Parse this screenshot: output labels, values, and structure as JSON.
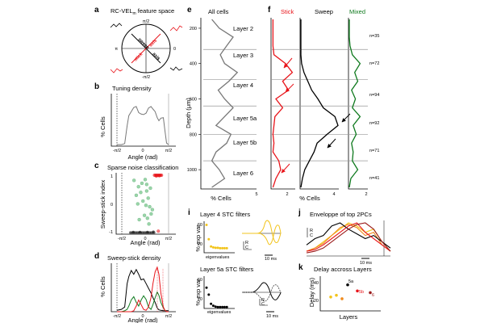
{
  "figure": {
    "panel_letters": {
      "a": "a",
      "b": "b",
      "c": "c",
      "d": "d",
      "e": "e",
      "f": "f",
      "i": "i",
      "j": "j",
      "k": "k"
    },
    "colors": {
      "stick": "#e8141a",
      "sweep": "#000000",
      "mixed": "#0f7a1e",
      "curve_gray": "#777777",
      "dot_green": "#8fd0a0",
      "yellow": "#f2c41c",
      "orange": "#f08a1c",
      "darkred": "#9b1c1c"
    },
    "a": {
      "title": "RC-VEL",
      "title_sub": "m",
      "title_rest": " feature space",
      "sweep_label": "sweep",
      "stick_label": "stick",
      "axis_label": "axis",
      "angle_top": "π/2",
      "angle_bottom": "-π/2",
      "angle_left": "π",
      "angle_right": "0"
    },
    "b": {
      "title": "Tuning density",
      "ylabel": "% Cells",
      "xlabel": "Angle (rad)",
      "xticks": [
        "-π/2",
        "0",
        "π/2"
      ]
    },
    "c": {
      "title": "Sparse noise classification",
      "ylabel": "Sweep-stick index",
      "xlabel": "Angle (rad)",
      "yticks": [
        "1",
        "0",
        "-1"
      ],
      "xticks": [
        "-π/2",
        "0",
        "π/2"
      ]
    },
    "d": {
      "title": "Sweep-stick density",
      "ylabel": "% Cells",
      "xlabel": "Angle (rad)",
      "xticks": [
        "-π/2",
        "0",
        "π/2"
      ]
    },
    "e": {
      "title": "All cells",
      "ylabel": "Depth (μm)",
      "xlabel": "% Cells",
      "xtick_max": "5",
      "depth_ticks": [
        "200",
        "400",
        "600",
        "800",
        "1000"
      ],
      "layers": [
        "Layer 2",
        "Layer 3",
        "Layer 4",
        "Layer 5a",
        "Layer 5b",
        "Layer 6"
      ]
    },
    "f": {
      "stick_title": "Stick",
      "sweep_title": "Sweep",
      "mixed_title": "Mixed",
      "stick_xtick": "2",
      "sweep_xlabel": "% Cells",
      "sweep_xtick": "4",
      "mixed_xtick": "2",
      "counts": [
        "n=35",
        "n=72",
        "n=94",
        "n=92",
        "n=71",
        "n=41"
      ]
    },
    "i": {
      "title_top": "Layer 4 STC filters",
      "title_bottom": "Layer 5a STC filters",
      "ylabel": "% exp var",
      "ytick_top_60": "60",
      "ytick_top_20": "20",
      "ytick_bot_60": "60",
      "ytick_bot_20": "20",
      "xlabel": "eigenvalues",
      "scale_ms": "10 ms",
      "scale_r": "R",
      "scale_c": "C"
    },
    "j": {
      "title": "Enveloppe of top 2PCs",
      "scale_ms": "10 ms",
      "scale_r": "R",
      "scale_c": "C"
    },
    "k": {
      "title": "Delay accross Layers",
      "ylabel": "Delay (ms)",
      "xlabel": "Layers",
      "yticks": [
        "40",
        "20"
      ],
      "layer_labels": [
        "5a",
        "5b",
        "6"
      ]
    }
  },
  "chart_data": [
    {
      "panel": "b",
      "type": "line",
      "title": "Tuning density",
      "xlabel": "Angle (rad)",
      "ylabel": "% Cells",
      "xlim": [
        -1.5708,
        1.5708
      ],
      "ylim": [
        0,
        10
      ],
      "x": [
        -1.5708,
        -1.3,
        -1.1,
        -0.95,
        -0.85,
        -0.7,
        -0.55,
        -0.4,
        -0.25,
        -0.1,
        0.05,
        0.2,
        0.35,
        0.5,
        0.62,
        0.75,
        0.88,
        0.98,
        1.1,
        1.25,
        1.35,
        1.45,
        1.5708
      ],
      "series": [
        {
          "name": "all cells",
          "values": [
            0.3,
            0.3,
            0.5,
            4.0,
            6.0,
            6.8,
            7.6,
            7.8,
            6.6,
            6.3,
            6.2,
            6.5,
            7.5,
            7.8,
            7.3,
            6.8,
            5.6,
            5.0,
            5.5,
            5.6,
            3.0,
            0.6,
            0.3
          ]
        }
      ]
    },
    {
      "panel": "c",
      "type": "scatter",
      "title": "Sparse noise classification",
      "xlabel": "Angle (rad)",
      "ylabel": "Sweep-stick index",
      "xlim": [
        -1.5708,
        1.5708
      ],
      "ylim": [
        -1,
        1
      ],
      "series": [
        {
          "name": "sweep",
          "points": [
            [
              -1.0,
              -1.0
            ],
            [
              -0.9,
              -1.0
            ],
            [
              -0.8,
              -1.0
            ],
            [
              -0.7,
              -1.0
            ],
            [
              -0.6,
              -1.0
            ],
            [
              -0.5,
              -1.0
            ],
            [
              -0.4,
              -1.0
            ],
            [
              -0.3,
              -1.0
            ],
            [
              -0.2,
              -1.0
            ],
            [
              -0.1,
              -1.0
            ],
            [
              0.0,
              -1.0
            ],
            [
              0.1,
              -1.0
            ],
            [
              0.2,
              -1.0
            ],
            [
              0.3,
              -1.0
            ],
            [
              0.4,
              -1.0
            ],
            [
              0.5,
              -1.0
            ],
            [
              0.6,
              -1.0
            ],
            [
              -0.8,
              -0.98
            ],
            [
              -0.35,
              -0.98
            ],
            [
              0.15,
              -0.98
            ],
            [
              0.55,
              -0.97
            ]
          ]
        },
        {
          "name": "stick",
          "points": [
            [
              0.62,
              1.0
            ],
            [
              0.68,
              1.0
            ],
            [
              0.74,
              1.0
            ],
            [
              0.8,
              1.0
            ],
            [
              0.86,
              1.0
            ],
            [
              0.92,
              1.0
            ],
            [
              0.98,
              1.0
            ],
            [
              1.04,
              1.0
            ],
            [
              1.1,
              1.0
            ],
            [
              0.75,
              0.97
            ],
            [
              0.95,
              0.98
            ],
            [
              0.88,
              -0.95
            ]
          ]
        },
        {
          "name": "mixed",
          "points": [
            [
              -0.75,
              0.82
            ],
            [
              -0.45,
              0.6
            ],
            [
              -0.22,
              0.72
            ],
            [
              0.1,
              0.68
            ],
            [
              -0.6,
              0.3
            ],
            [
              -0.3,
              0.4
            ],
            [
              0.2,
              0.2
            ],
            [
              -0.15,
              0.1
            ],
            [
              0.05,
              -0.05
            ],
            [
              -0.5,
              0.0
            ],
            [
              0.3,
              -0.1
            ],
            [
              -0.05,
              -0.4
            ],
            [
              0.15,
              -0.5
            ],
            [
              0.4,
              -0.35
            ],
            [
              -0.4,
              -0.55
            ],
            [
              0.25,
              -0.7
            ],
            [
              0.48,
              -0.2
            ],
            [
              0.1,
              0.45
            ],
            [
              0.35,
              0.55
            ],
            [
              0.0,
              0.85
            ]
          ]
        }
      ]
    },
    {
      "panel": "d",
      "type": "line",
      "title": "Sweep-stick density",
      "xlabel": "Angle (rad)",
      "ylabel": "% Cells",
      "xlim": [
        -1.5708,
        1.5708
      ],
      "ylim": [
        0,
        10
      ],
      "x": [
        -1.5708,
        -1.3,
        -1.1,
        -0.95,
        -0.85,
        -0.7,
        -0.55,
        -0.4,
        -0.25,
        -0.1,
        0.05,
        0.2,
        0.35,
        0.5,
        0.62,
        0.75,
        0.88,
        0.98,
        1.1,
        1.25,
        1.35,
        1.45,
        1.5708
      ],
      "series": [
        {
          "name": "Sweep",
          "color": "#000000",
          "values": [
            0.3,
            0.5,
            1.0,
            6.0,
            7.5,
            8.8,
            8.0,
            9.0,
            8.0,
            6.8,
            7.0,
            6.0,
            5.0,
            4.0,
            3.0,
            2.0,
            0.8,
            0.4,
            0.3,
            0.2,
            0.2,
            0.2,
            0.2
          ]
        },
        {
          "name": "Mixed",
          "color": "#0f7a1e",
          "values": [
            0,
            0,
            0.2,
            0.5,
            1.2,
            2.5,
            3.2,
            2.0,
            1.2,
            2.5,
            3.4,
            2.6,
            1.0,
            0.5,
            1.5,
            3.0,
            4.2,
            3.5,
            2.0,
            0.8,
            0.3,
            0,
            0
          ]
        },
        {
          "name": "Stick",
          "color": "#e8141a",
          "values": [
            0,
            0,
            0,
            0,
            0,
            0,
            0.2,
            1.2,
            2.5,
            1.5,
            0.5,
            0.3,
            1.0,
            3.0,
            6.0,
            8.5,
            9.5,
            8.0,
            4.0,
            1.0,
            0.3,
            0,
            0
          ]
        }
      ]
    },
    {
      "panel": "e",
      "type": "line",
      "title": "All cells",
      "xlabel": "% Cells",
      "ylabel": "Depth (μm)",
      "xlim": [
        0,
        5
      ],
      "ylim": [
        1100,
        150
      ],
      "depth": [
        150,
        200,
        250,
        300,
        350,
        400,
        450,
        500,
        550,
        600,
        650,
        700,
        750,
        800,
        850,
        900,
        950,
        1000,
        1050,
        1100
      ],
      "series": [
        {
          "name": "all cells",
          "values": [
            0.8,
            1.5,
            2.8,
            2.2,
            1.6,
            2.0,
            3.2,
            2.4,
            1.4,
            2.0,
            2.8,
            2.0,
            1.2,
            2.6,
            2.2,
            1.2,
            0.8,
            1.5,
            2.0,
            0.8
          ]
        }
      ]
    },
    {
      "panel": "f",
      "type": "line",
      "title": "Stick / Sweep / Mixed depth profiles",
      "xlabel": "% Cells",
      "ylabel": "Depth (μm)",
      "ylim": [
        1100,
        150
      ],
      "depth": [
        150,
        200,
        250,
        300,
        350,
        400,
        450,
        500,
        550,
        600,
        650,
        700,
        750,
        800,
        850,
        900,
        950,
        1000,
        1050,
        1100
      ],
      "series": [
        {
          "name": "Stick",
          "color": "#e8141a",
          "xlim": [
            0,
            2.5
          ],
          "values": [
            0.2,
            0.2,
            0.2,
            0.2,
            0.3,
            1.5,
            2.2,
            1.2,
            1.8,
            0.5,
            1.2,
            0.4,
            0.3,
            0.2,
            0.3,
            0.2,
            0.8,
            1.0,
            0.5,
            0.2
          ]
        },
        {
          "name": "Sweep",
          "color": "#000000",
          "xlim": [
            0,
            5
          ],
          "values": [
            0.1,
            0.1,
            0.1,
            0.1,
            0.1,
            0.2,
            0.5,
            1.0,
            1.5,
            2.3,
            3.0,
            4.5,
            4.9,
            3.5,
            2.2,
            1.8,
            1.2,
            0.6,
            0.3,
            0.1
          ]
        },
        {
          "name": "Mixed",
          "color": "#0f7a1e",
          "xlim": [
            0,
            2.5
          ],
          "values": [
            0.1,
            0.1,
            0.1,
            0.2,
            0.5,
            1.5,
            0.8,
            1.2,
            0.4,
            0.9,
            0.5,
            1.5,
            0.6,
            1.0,
            0.4,
            0.6,
            0.5,
            1.2,
            0.3,
            0.1
          ]
        }
      ],
      "counts": [
        "n=35",
        "n=72",
        "n=94",
        "n=92",
        "n=71",
        "n=41"
      ],
      "layer_boundaries_um": [
        320,
        490,
        640,
        800,
        950
      ]
    },
    {
      "panel": "i",
      "type": "scatter",
      "title": "Layer 4 STC filters",
      "xlabel": "eigenvalues",
      "ylabel": "% exp var",
      "ylim": [
        0,
        70
      ],
      "series": [
        {
          "name": "Layer 4 eigenvalues",
          "color": "#f2c41c",
          "values": [
            62,
            30,
            14,
            12,
            11,
            11,
            10,
            10,
            10,
            10
          ]
        }
      ]
    },
    {
      "panel": "i",
      "type": "scatter",
      "title": "Layer 5a STC filters",
      "xlabel": "eigenvalues",
      "ylabel": "% exp var",
      "ylim": [
        0,
        70
      ],
      "series": [
        {
          "name": "Layer 5a eigenvalues",
          "color": "#000000",
          "values": [
            45,
            30,
            10,
            6,
            4,
            3,
            3,
            3,
            3,
            3
          ]
        }
      ]
    },
    {
      "panel": "j",
      "type": "line",
      "title": "Enveloppe of top 2PCs",
      "x_ms": [
        0,
        5,
        10,
        15,
        20,
        25,
        30,
        35,
        40,
        45,
        50
      ],
      "series": [
        {
          "name": "Layer 4 a",
          "color": "#f2c41c",
          "values": [
            0.1,
            0.2,
            0.4,
            0.6,
            0.8,
            1.0,
            0.9,
            0.7,
            0.8,
            0.4,
            0.1
          ]
        },
        {
          "name": "Layer 4 b",
          "color": "#f08a1c",
          "values": [
            0.1,
            0.2,
            0.35,
            0.6,
            0.85,
            0.95,
            0.85,
            0.6,
            0.7,
            0.3,
            0.1
          ]
        },
        {
          "name": "Layer 5a",
          "color": "#000000",
          "values": [
            0.3,
            0.5,
            0.6,
            0.9,
            1.0,
            0.8,
            0.65,
            0.5,
            0.6,
            0.4,
            0.2
          ]
        },
        {
          "name": "Layer 5b",
          "color": "#e8141a",
          "values": [
            0.1,
            0.15,
            0.3,
            0.5,
            0.7,
            0.9,
            1.0,
            0.7,
            0.5,
            0.3,
            0.1
          ]
        },
        {
          "name": "Layer 6",
          "color": "#9b1c1c",
          "values": [
            0.05,
            0.1,
            0.2,
            0.4,
            0.6,
            0.8,
            0.95,
            1.0,
            0.8,
            0.4,
            0.1
          ]
        }
      ]
    },
    {
      "panel": "k",
      "type": "scatter",
      "title": "Delay accross Layers",
      "xlabel": "Layers",
      "ylabel": "Delay (ms)",
      "ylim": [
        10,
        50
      ],
      "categories": [
        "4",
        "4",
        "4",
        "5a",
        "5b",
        "6"
      ],
      "series": [
        {
          "name": "delay",
          "values": [
            26,
            28,
            24,
            40,
            33,
            31
          ],
          "colors": [
            "#f2c41c",
            "#f2c41c",
            "#f08a1c",
            "#000000",
            "#e8141a",
            "#9b1c1c"
          ]
        }
      ]
    }
  ]
}
